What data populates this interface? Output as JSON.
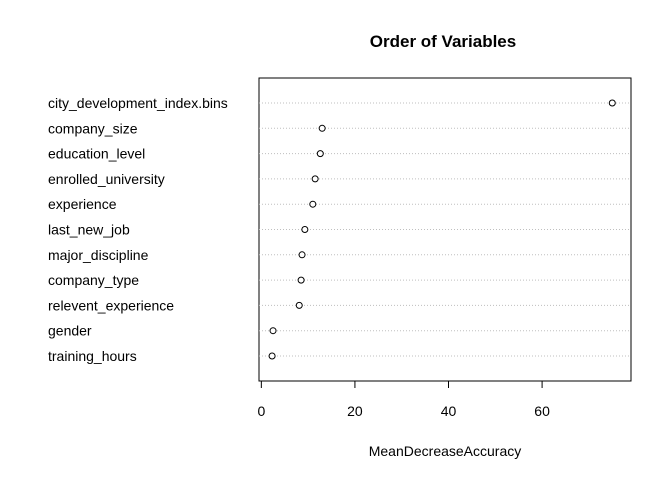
{
  "chart_data": {
    "type": "dotchart",
    "title": "Order of Variables",
    "xlabel": "MeanDecreaseAccuracy",
    "ylabel": "",
    "xlim": [
      -0.5,
      79
    ],
    "xticks": [
      0,
      20,
      40,
      60
    ],
    "grid": "dotted horizontal lines per variable",
    "categories": [
      "city_development_index.bins",
      "company_size",
      "education_level",
      "enrolled_university",
      "experience",
      "last_new_job",
      "major_discipline",
      "company_type",
      "relevent_experience",
      "gender",
      "training_hours"
    ],
    "values": [
      75.0,
      13.0,
      12.6,
      11.5,
      11.0,
      9.3,
      8.7,
      8.5,
      8.1,
      2.5,
      2.3
    ]
  }
}
